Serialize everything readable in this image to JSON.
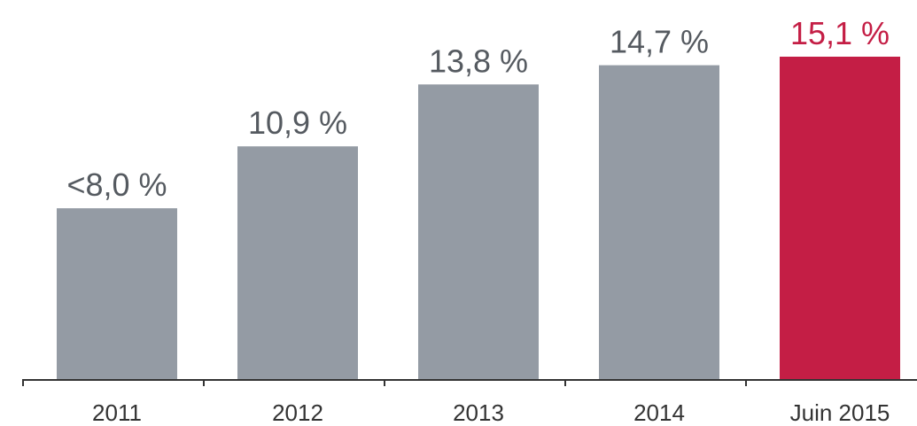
{
  "chart_data": {
    "type": "bar",
    "categories": [
      "2011",
      "2012",
      "2013",
      "2014",
      "Juin 2015"
    ],
    "values": [
      8.0,
      10.9,
      13.8,
      14.7,
      15.1
    ],
    "data_labels": [
      "<8,0 %",
      "10,9 %",
      "13,8 %",
      "14,7 %",
      "15,1 %"
    ],
    "title": "",
    "xlabel": "",
    "ylabel": "",
    "ylim": [
      0,
      15.1
    ],
    "grid": false,
    "legend": "none",
    "colors": {
      "default_bar": "#949ba4",
      "highlight_bar": "#c41e45",
      "default_label": "#555a60",
      "highlight_label": "#c41e45",
      "axis": "#333333"
    },
    "highlight_index": 4
  }
}
